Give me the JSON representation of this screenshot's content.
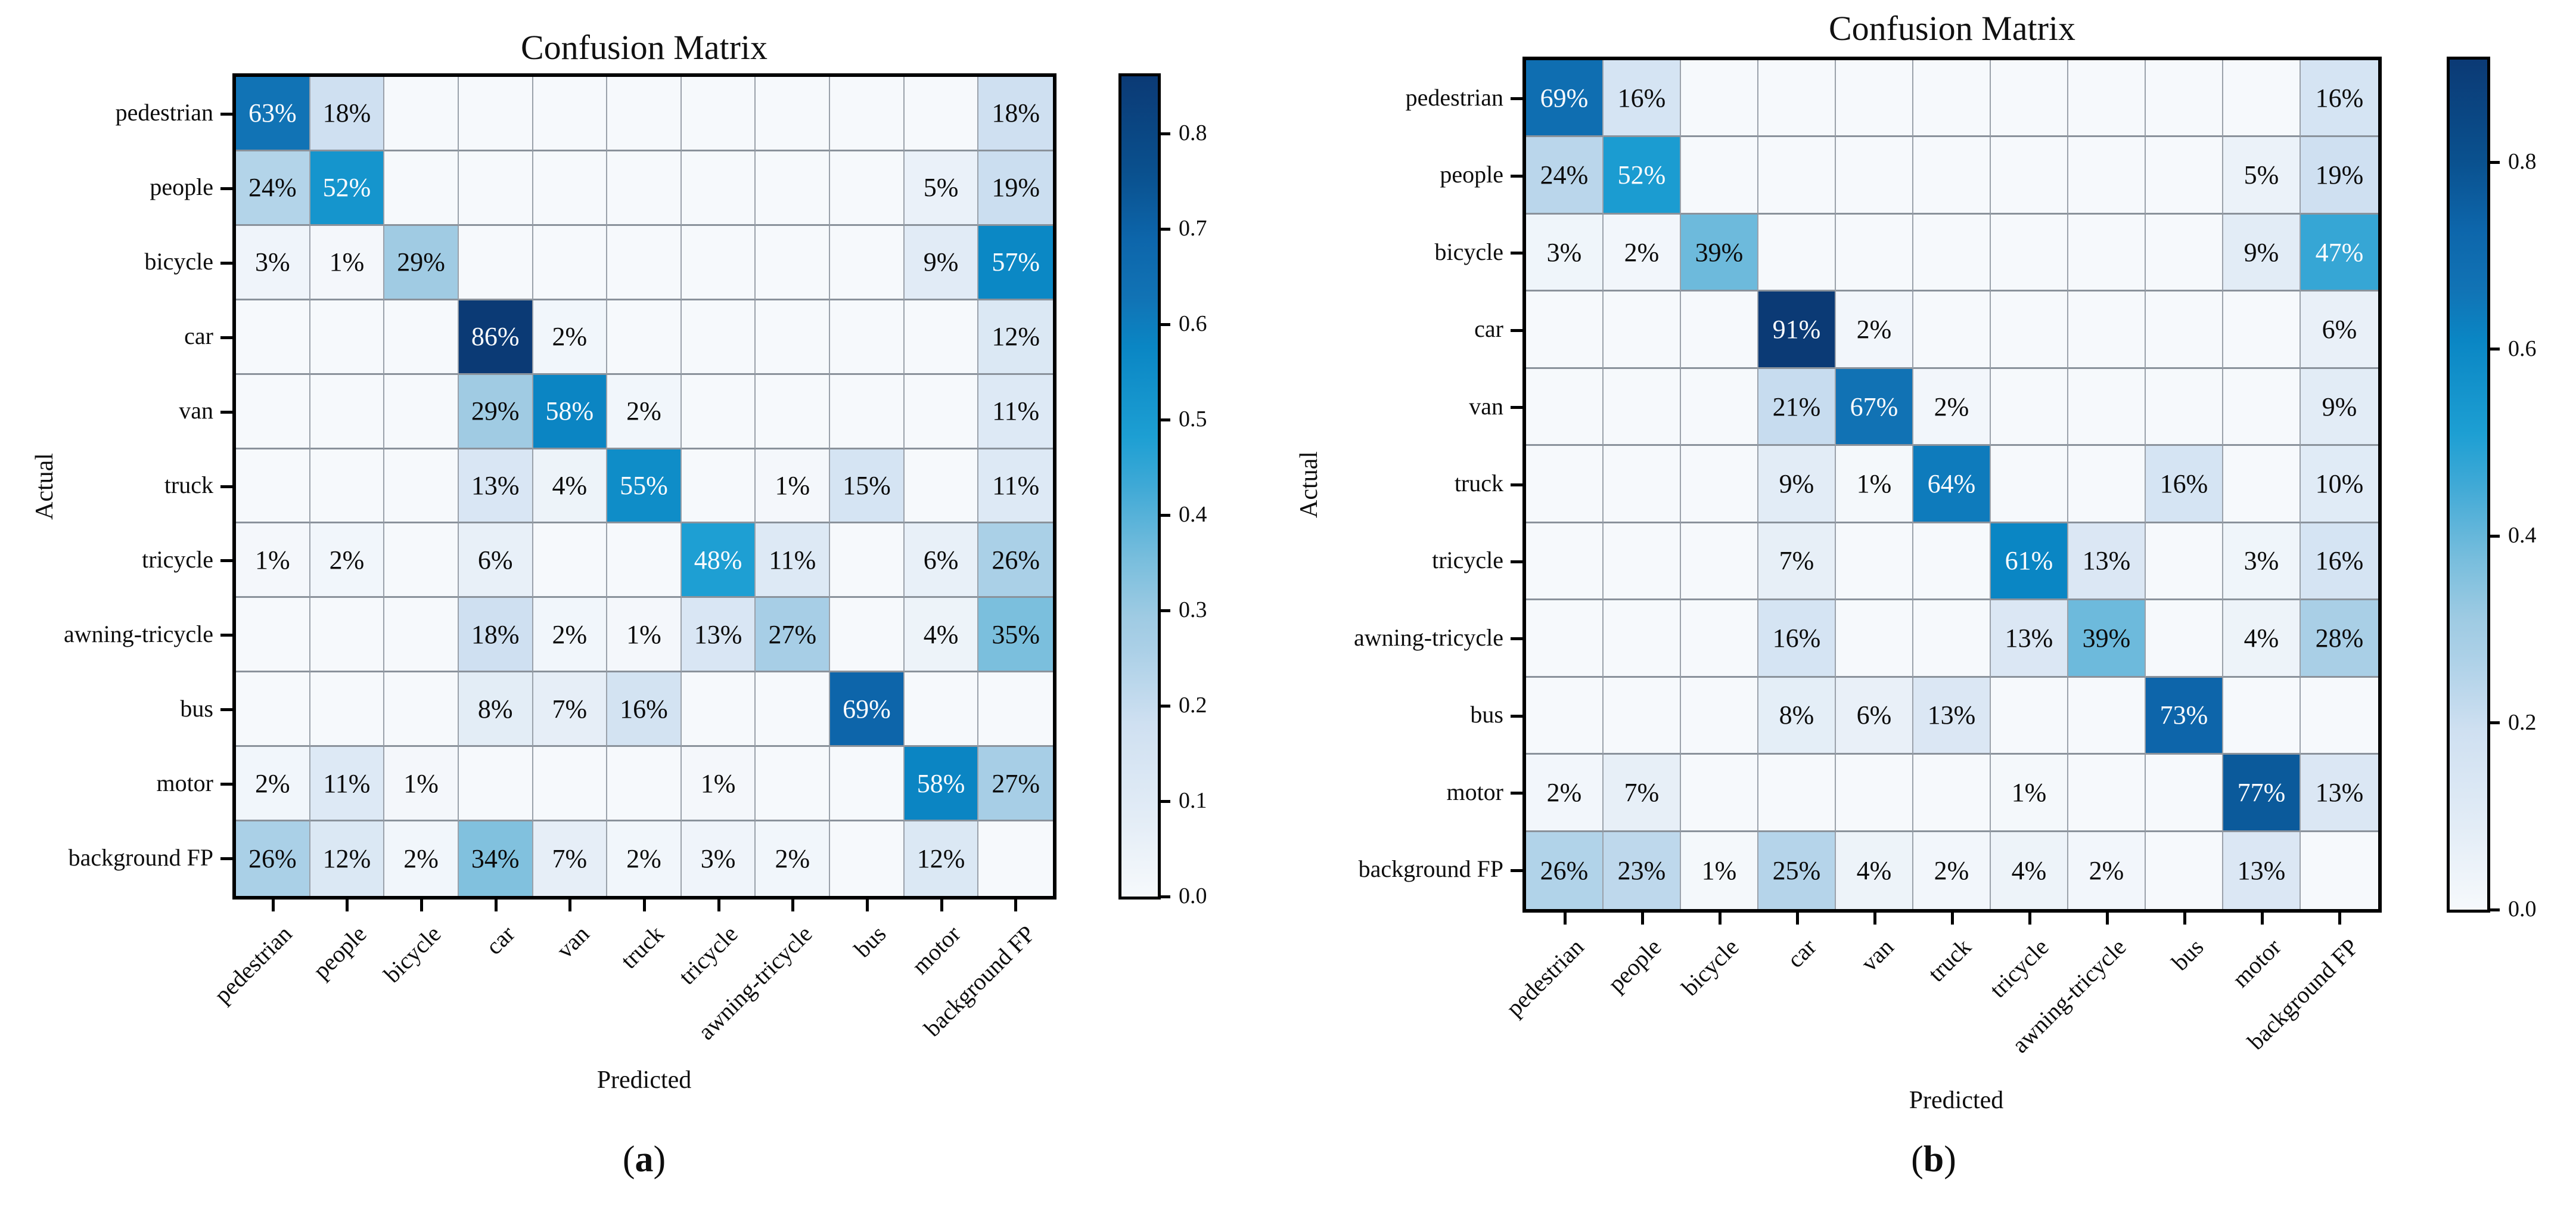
{
  "figure": {
    "background": "#ffffff",
    "panel_count": 2,
    "accent_dark_blue": "#0b3a75",
    "accent_mid_blue": "#0a86c4",
    "accent_light_blue": "#cfe0f1"
  },
  "chart_data": [
    {
      "type": "heatmap",
      "title": "Confusion Matrix",
      "xlabel": "Predicted",
      "ylabel": "Actual",
      "caption": {
        "open": "(",
        "letter": "a",
        "close": ")"
      },
      "x_categories": [
        "pedestrian",
        "people",
        "bicycle",
        "car",
        "van",
        "truck",
        "tricycle",
        "awning-tricycle",
        "bus",
        "motor",
        "background FP"
      ],
      "y_categories": [
        "pedestrian",
        "people",
        "bicycle",
        "car",
        "van",
        "truck",
        "tricycle",
        "awning-tricycle",
        "bus",
        "motor",
        "background FP"
      ],
      "cell_value_suffix": "%",
      "values_percent": [
        [
          63,
          18,
          null,
          null,
          null,
          null,
          null,
          null,
          null,
          null,
          18
        ],
        [
          24,
          52,
          null,
          null,
          null,
          null,
          null,
          null,
          null,
          5,
          19
        ],
        [
          3,
          1,
          29,
          null,
          null,
          null,
          null,
          null,
          null,
          9,
          57
        ],
        [
          null,
          null,
          null,
          86,
          2,
          null,
          null,
          null,
          null,
          null,
          12
        ],
        [
          null,
          null,
          null,
          29,
          58,
          2,
          null,
          null,
          null,
          null,
          11
        ],
        [
          null,
          null,
          null,
          13,
          4,
          55,
          null,
          1,
          15,
          null,
          11
        ],
        [
          1,
          2,
          null,
          6,
          null,
          null,
          48,
          11,
          null,
          6,
          26
        ],
        [
          null,
          null,
          null,
          18,
          2,
          1,
          13,
          27,
          null,
          4,
          35
        ],
        [
          null,
          null,
          null,
          8,
          7,
          16,
          null,
          null,
          69,
          null,
          null
        ],
        [
          2,
          11,
          1,
          null,
          null,
          null,
          1,
          null,
          null,
          58,
          27
        ],
        [
          26,
          12,
          2,
          34,
          7,
          2,
          3,
          2,
          null,
          12,
          null
        ]
      ],
      "vmin": 0.0,
      "vmax": 0.86,
      "colormap": "Blues",
      "grid": true,
      "legend_position": "right-colorbar",
      "colorbar_tick_labels": [
        "0.0",
        "0.1",
        "0.2",
        "0.3",
        "0.4",
        "0.5",
        "0.6",
        "0.7",
        "0.8"
      ]
    },
    {
      "type": "heatmap",
      "title": "Confusion Matrix",
      "xlabel": "Predicted",
      "ylabel": "Actual",
      "caption": {
        "open": "(",
        "letter": "b",
        "close": ")"
      },
      "x_categories": [
        "pedestrian",
        "people",
        "bicycle",
        "car",
        "van",
        "truck",
        "tricycle",
        "awning-tricycle",
        "bus",
        "motor",
        "background FP"
      ],
      "y_categories": [
        "pedestrian",
        "people",
        "bicycle",
        "car",
        "van",
        "truck",
        "tricycle",
        "awning-tricycle",
        "bus",
        "motor",
        "background FP"
      ],
      "cell_value_suffix": "%",
      "values_percent": [
        [
          69,
          16,
          null,
          null,
          null,
          null,
          null,
          null,
          null,
          null,
          16
        ],
        [
          24,
          52,
          null,
          null,
          null,
          null,
          null,
          null,
          null,
          5,
          19
        ],
        [
          3,
          2,
          39,
          null,
          null,
          null,
          null,
          null,
          null,
          9,
          47
        ],
        [
          null,
          null,
          null,
          91,
          2,
          null,
          null,
          null,
          null,
          null,
          6
        ],
        [
          null,
          null,
          null,
          21,
          67,
          2,
          null,
          null,
          null,
          null,
          9
        ],
        [
          null,
          null,
          null,
          9,
          1,
          64,
          null,
          null,
          16,
          null,
          10
        ],
        [
          null,
          null,
          null,
          7,
          null,
          null,
          61,
          13,
          null,
          3,
          16
        ],
        [
          null,
          null,
          null,
          16,
          null,
          null,
          13,
          39,
          null,
          4,
          28
        ],
        [
          null,
          null,
          null,
          8,
          6,
          13,
          null,
          null,
          73,
          null,
          null
        ],
        [
          2,
          7,
          null,
          null,
          null,
          null,
          1,
          null,
          null,
          77,
          13
        ],
        [
          26,
          23,
          1,
          25,
          4,
          2,
          4,
          2,
          null,
          13,
          null
        ]
      ],
      "vmin": 0.0,
      "vmax": 0.91,
      "colormap": "Blues",
      "grid": true,
      "legend_position": "right-colorbar",
      "colorbar_tick_labels": [
        "0.0",
        "0.2",
        "0.4",
        "0.6",
        "0.8"
      ]
    }
  ]
}
